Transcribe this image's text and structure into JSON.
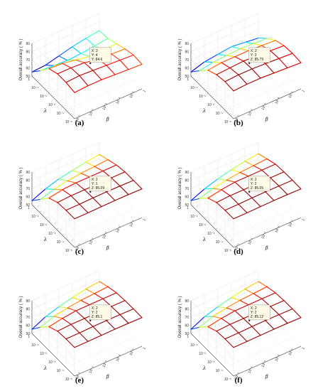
{
  "chart_data": [
    {
      "panel": "(a)",
      "type": "surface3d",
      "zlabel": "Overall accuracy ( % )",
      "x_axis_symbol": "λ",
      "y_axis_symbol": "β",
      "x_ticks": [
        "1",
        "10^-1",
        "10^-2",
        "10^-3",
        "10^-4",
        "10^-5"
      ],
      "y_ticks": [
        "10^-5",
        "10^-4",
        "10^-3",
        "10^-2",
        "10^-1",
        "1"
      ],
      "z_ticks": [
        "50",
        "60",
        "70",
        "80",
        "90"
      ],
      "zlim": [
        50,
        90
      ],
      "z": [
        [
          55,
          56,
          60,
          64,
          67,
          69
        ],
        [
          67,
          66,
          65,
          66,
          68,
          70
        ],
        [
          80,
          79,
          76,
          73,
          73,
          74
        ],
        [
          84,
          84,
          83,
          80,
          79,
          78
        ],
        [
          84,
          85,
          84,
          83,
          82,
          81
        ],
        [
          82,
          83,
          83,
          82,
          81,
          80
        ]
      ],
      "datatip": [
        "X: 3",
        "Y: 4",
        "Y: 84.6"
      ]
    },
    {
      "panel": "(b)",
      "type": "surface3d",
      "zlabel": "Overall accuracy ( % )",
      "x_axis_symbol": "λ",
      "y_axis_symbol": "β",
      "x_ticks": [
        "1",
        "10^-1",
        "10^-2",
        "10^-3",
        "10^-4",
        "10^-5"
      ],
      "y_ticks": [
        "10^-5",
        "10^-4",
        "10^-3",
        "10^-2",
        "10^-1",
        "1"
      ],
      "z_ticks": [
        "50",
        "60",
        "70",
        "80",
        "90"
      ],
      "zlim": [
        50,
        90
      ],
      "z": [
        [
          55,
          60,
          62,
          64,
          62,
          60
        ],
        [
          67,
          70,
          71,
          72,
          71,
          70
        ],
        [
          78,
          80,
          80,
          80,
          79,
          78
        ],
        [
          83,
          84,
          85,
          84,
          83,
          82
        ],
        [
          85,
          86,
          85.8,
          85,
          84,
          83
        ],
        [
          84,
          85,
          85,
          84,
          83,
          82
        ]
      ],
      "datatip": [
        "X: 3",
        "Y: 3",
        "Z: 85.79"
      ]
    },
    {
      "panel": "(c)",
      "type": "surface3d",
      "zlabel": "Overall accuracy ( % )",
      "x_axis_symbol": "λ",
      "y_axis_symbol": "β",
      "x_ticks": [
        "1",
        "10^-1",
        "10^-2",
        "10^-3",
        "10^-4",
        "10^-5"
      ],
      "y_ticks": [
        "10^-5",
        "10^-4",
        "10^-3",
        "10^-2",
        "10^-1",
        "1"
      ],
      "z_ticks": [
        "50",
        "60",
        "70",
        "80",
        "90"
      ],
      "zlim": [
        50,
        90
      ],
      "z": [
        [
          55,
          62,
          67,
          70,
          73,
          75
        ],
        [
          67,
          72,
          75,
          77,
          78,
          79
        ],
        [
          79,
          82,
          83,
          83,
          83,
          83
        ],
        [
          84,
          85,
          85,
          85,
          85,
          85
        ],
        [
          85,
          85.1,
          85.5,
          85.6,
          85.4,
          85
        ],
        [
          85,
          85,
          85.3,
          85.5,
          85.4,
          85
        ]
      ],
      "datatip": [
        "X: 2",
        "Y: 1",
        "Z: 85.09"
      ]
    },
    {
      "panel": "(d)",
      "type": "surface3d",
      "zlabel": "Overall accuracy ( % )",
      "x_axis_symbol": "λ",
      "y_axis_symbol": "β",
      "x_ticks": [
        "1",
        "10^-1",
        "10^-2",
        "10^-3",
        "10^-4",
        "10^-5"
      ],
      "y_ticks": [
        "10^-5",
        "10^-4",
        "10^-3",
        "10^-2",
        "10^-1",
        "1"
      ],
      "z_ticks": [
        "50",
        "60",
        "70",
        "80",
        "90"
      ],
      "zlim": [
        50,
        90
      ],
      "z": [
        [
          55,
          62,
          67,
          71,
          74,
          76
        ],
        [
          68,
          73,
          76,
          78,
          79,
          80
        ],
        [
          79,
          82,
          84,
          84,
          84,
          84
        ],
        [
          84,
          85,
          85,
          85.2,
          85,
          85
        ],
        [
          85,
          85.05,
          85.5,
          85.6,
          85.5,
          85.2
        ],
        [
          85,
          85,
          85.3,
          85.5,
          85.4,
          85
        ]
      ],
      "datatip": [
        "X: 2",
        "Y: 2",
        "Z: 85.05"
      ]
    },
    {
      "panel": "(e)",
      "type": "surface3d",
      "zlabel": "Overall accuracy ( % )",
      "x_axis_symbol": "λ",
      "y_axis_symbol": "β",
      "x_ticks": [
        "1",
        "10^-1",
        "10^-2",
        "10^-3",
        "10^-4",
        "10^-5"
      ],
      "y_ticks": [
        "10^-5",
        "10^-4",
        "10^-3",
        "10^-2",
        "10^-1",
        "1"
      ],
      "z_ticks": [
        "50",
        "60",
        "70",
        "80",
        "90"
      ],
      "zlim": [
        50,
        90
      ],
      "z": [
        [
          55,
          63,
          68,
          72,
          75,
          77
        ],
        [
          68,
          74,
          77,
          79,
          80,
          81
        ],
        [
          79,
          82,
          84,
          84,
          84,
          84
        ],
        [
          84,
          85,
          85,
          85.2,
          85,
          85
        ],
        [
          85,
          85.1,
          85.5,
          85.6,
          85.5,
          85.2
        ],
        [
          85,
          85.1,
          85.3,
          85.5,
          85.4,
          85
        ]
      ],
      "datatip": [
        "X: 2",
        "Y: 2",
        "Z: 85.1"
      ]
    },
    {
      "panel": "(f)",
      "type": "surface3d",
      "zlabel": "Overall accuracy ( % )",
      "x_axis_symbol": "λ",
      "y_axis_symbol": "β",
      "x_ticks": [
        "1",
        "10^-1",
        "10^-2",
        "10^-3",
        "10^-4",
        "10^-5"
      ],
      "y_ticks": [
        "10^-5",
        "10^-4",
        "10^-3",
        "10^-2",
        "10^-1",
        "1"
      ],
      "z_ticks": [
        "50",
        "60",
        "70",
        "80",
        "90"
      ],
      "zlim": [
        50,
        90
      ],
      "z": [
        [
          55,
          63,
          68,
          72,
          75,
          77
        ],
        [
          68,
          74,
          77,
          79,
          80,
          81
        ],
        [
          79,
          82,
          84,
          84,
          84,
          84
        ],
        [
          84,
          85,
          85,
          85.2,
          85,
          85
        ],
        [
          85,
          85.12,
          85.5,
          85.6,
          85.5,
          85.2
        ],
        [
          85,
          85.1,
          85.3,
          85.5,
          85.4,
          85
        ]
      ],
      "datatip": [
        "X: 2",
        "Y: 2",
        "Z: 85.12"
      ]
    }
  ]
}
